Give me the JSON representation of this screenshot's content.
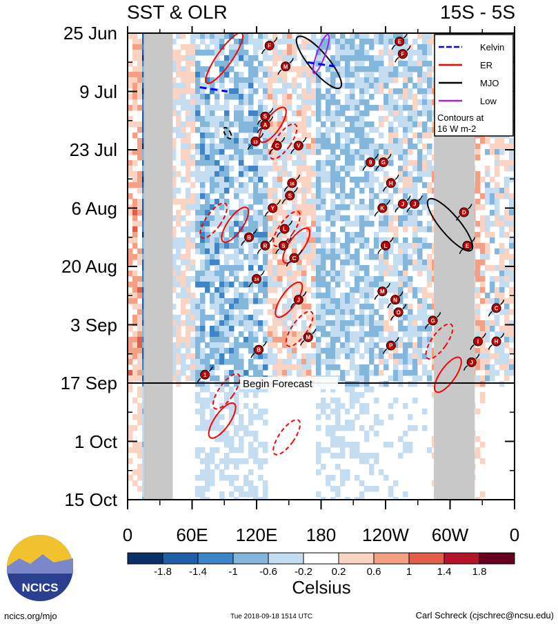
{
  "header": {
    "title_left": "SST & OLR",
    "title_right": "15S - 5S"
  },
  "forecast_label": "Begin Forecast",
  "legend": {
    "items": [
      {
        "label": "Kelvin",
        "color": "#0000ff",
        "style": "dashed"
      },
      {
        "label": "ER",
        "color": "#ff0000",
        "style": "solid"
      },
      {
        "label": "MJO",
        "color": "#000000",
        "style": "solid"
      },
      {
        "label": "Low",
        "color": "#a020f0",
        "style": "solid"
      }
    ],
    "note_line1": "Contours at",
    "note_line2": "16 W m-2"
  },
  "chart_data": {
    "type": "heatmap",
    "title": "SST & OLR",
    "subtitle": "15S - 5S",
    "x_ticks": [
      "0",
      "60E",
      "120E",
      "180",
      "120W",
      "60W",
      "0"
    ],
    "x_range_deg_east": [
      0,
      360
    ],
    "y_ticks": [
      "25 Jun",
      "9 Jul",
      "23 Jul",
      "6 Aug",
      "20 Aug",
      "3 Sep",
      "17 Sep",
      "1 Oct",
      "15 Oct"
    ],
    "y_range": [
      "2018-06-25",
      "2018-10-15"
    ],
    "forecast_start": "2018-09-17",
    "colorbar": {
      "label": "Celsius",
      "ticks": [
        "-1.8",
        "-1.4",
        "-1",
        "-0.6",
        "-0.2",
        "0.2",
        "0.6",
        "1",
        "1.4",
        "1.8"
      ],
      "colors": [
        "#08306b",
        "#1f5fa8",
        "#3d85c6",
        "#82b6da",
        "#c4dcef",
        "#ffffff",
        "#fbd3c2",
        "#f4a084",
        "#e05e4a",
        "#b4152b",
        "#67001f"
      ]
    },
    "land_mask_lon_ranges": [
      [
        15,
        42
      ],
      [
        285,
        323
      ]
    ],
    "wave_contours": [
      {
        "type": "ER",
        "lon": 90,
        "date": "2018-07-01",
        "style": "solid"
      },
      {
        "type": "ER",
        "lon": 135,
        "date": "2018-07-17",
        "style": "solid"
      },
      {
        "type": "ER",
        "lon": 145,
        "date": "2018-07-21",
        "style": "dashed"
      },
      {
        "type": "ER",
        "lon": 80,
        "date": "2018-08-09",
        "style": "dashed"
      },
      {
        "type": "ER",
        "lon": 100,
        "date": "2018-08-10",
        "style": "solid"
      },
      {
        "type": "ER",
        "lon": 148,
        "date": "2018-08-11",
        "style": "dashed"
      },
      {
        "type": "ER",
        "lon": 157,
        "date": "2018-08-15",
        "style": "solid"
      },
      {
        "type": "ER",
        "lon": 150,
        "date": "2018-08-28",
        "style": "solid"
      },
      {
        "type": "ER",
        "lon": 160,
        "date": "2018-09-04",
        "style": "dashed"
      },
      {
        "type": "ER",
        "lon": 290,
        "date": "2018-09-07",
        "style": "dashed"
      },
      {
        "type": "ER",
        "lon": 298,
        "date": "2018-09-15",
        "style": "solid"
      },
      {
        "type": "ER",
        "lon": 92,
        "date": "2018-09-19",
        "style": "dashed"
      },
      {
        "type": "ER",
        "lon": 88,
        "date": "2018-09-26",
        "style": "solid"
      },
      {
        "type": "ER",
        "lon": 148,
        "date": "2018-09-30",
        "style": "dashed"
      },
      {
        "type": "MJO",
        "lon": 178,
        "date": "2018-07-02",
        "style": "solid"
      },
      {
        "type": "MJO",
        "lon": 300,
        "date": "2018-08-10",
        "style": "solid"
      },
      {
        "type": "MJO",
        "lon": 93,
        "date": "2018-07-19",
        "style": "dashed"
      },
      {
        "type": "Low",
        "lon": 180,
        "date": "2018-06-30",
        "style": "solid"
      },
      {
        "type": "Kelvin",
        "lon": 180,
        "date": "2018-07-02",
        "style": "dashed"
      },
      {
        "type": "Kelvin",
        "lon": 80,
        "date": "2018-07-08",
        "style": "dashed"
      }
    ],
    "storm_markers": [
      {
        "label": "F",
        "lon": 132,
        "date": "2018-06-28"
      },
      {
        "label": "M",
        "lon": 147,
        "date": "2018-07-03"
      },
      {
        "label": "E",
        "lon": 253,
        "date": "2018-06-27"
      },
      {
        "label": "F",
        "lon": 256,
        "date": "2018-06-30"
      },
      {
        "label": "S",
        "lon": 128,
        "date": "2018-07-15"
      },
      {
        "label": "A",
        "lon": 128,
        "date": "2018-07-17"
      },
      {
        "label": "13",
        "lon": 119,
        "date": "2018-07-21"
      },
      {
        "label": "C",
        "lon": 139,
        "date": "2018-07-22"
      },
      {
        "label": "V",
        "lon": 159,
        "date": "2018-07-22"
      },
      {
        "label": "9",
        "lon": 226,
        "date": "2018-07-26"
      },
      {
        "label": "G",
        "lon": 238,
        "date": "2018-07-26"
      },
      {
        "label": "16",
        "lon": 153,
        "date": "2018-07-31"
      },
      {
        "label": "H",
        "lon": 245,
        "date": "2018-07-31"
      },
      {
        "label": "S",
        "lon": 151,
        "date": "2018-08-03"
      },
      {
        "label": "J",
        "lon": 256,
        "date": "2018-08-05"
      },
      {
        "label": "Y",
        "lon": 135,
        "date": "2018-08-06"
      },
      {
        "label": "K",
        "lon": 237,
        "date": "2018-08-06"
      },
      {
        "label": "J",
        "lon": 267,
        "date": "2018-08-05"
      },
      {
        "label": "D",
        "lon": 313,
        "date": "2018-08-07"
      },
      {
        "label": "L",
        "lon": 146,
        "date": "2018-08-11"
      },
      {
        "label": "B",
        "lon": 113,
        "date": "2018-08-13"
      },
      {
        "label": "R",
        "lon": 128,
        "date": "2018-08-15"
      },
      {
        "label": "S",
        "lon": 145,
        "date": "2018-08-15"
      },
      {
        "label": "L",
        "lon": 240,
        "date": "2018-08-15"
      },
      {
        "label": "E",
        "lon": 316,
        "date": "2018-08-15"
      },
      {
        "label": "C",
        "lon": 155,
        "date": "2018-08-18"
      },
      {
        "label": "24",
        "lon": 120,
        "date": "2018-08-23"
      },
      {
        "label": "J",
        "lon": 159,
        "date": "2018-08-28"
      },
      {
        "label": "M",
        "lon": 237,
        "date": "2018-08-26"
      },
      {
        "label": "N",
        "lon": 249,
        "date": "2018-08-28"
      },
      {
        "label": "O",
        "lon": 252,
        "date": "2018-08-31"
      },
      {
        "label": "G",
        "lon": 284,
        "date": "2018-09-02"
      },
      {
        "label": "C",
        "lon": 343,
        "date": "2018-08-30"
      },
      {
        "label": "M",
        "lon": 168,
        "date": "2018-09-06"
      },
      {
        "label": "P",
        "lon": 245,
        "date": "2018-09-08"
      },
      {
        "label": "I",
        "lon": 326,
        "date": "2018-09-07"
      },
      {
        "label": "H",
        "lon": 343,
        "date": "2018-09-07"
      },
      {
        "label": "B",
        "lon": 122,
        "date": "2018-09-09"
      },
      {
        "label": "J",
        "lon": 320,
        "date": "2018-09-12"
      },
      {
        "label": "1",
        "lon": 72,
        "date": "2018-09-15"
      }
    ]
  },
  "logo": {
    "text": "NCICS"
  },
  "footer": {
    "left": "ncics.org/mjo",
    "middle": "Tue 2018-09-18 1514 UTC",
    "right": "Carl Schreck (cjschrec@ncsu.edu)"
  }
}
